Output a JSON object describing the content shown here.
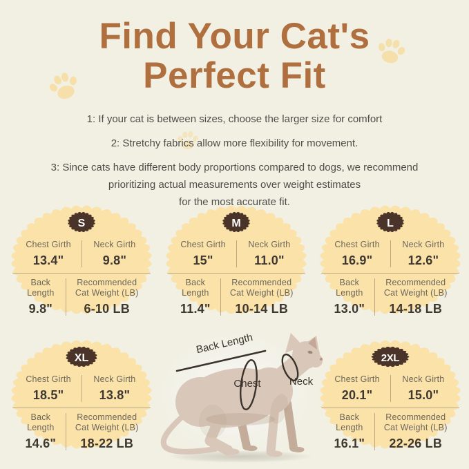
{
  "page": {
    "title_line1": "Find Your Cat's",
    "title_line2": "Perfect Fit",
    "colors": {
      "background": "#f1f0e3",
      "title": "#b06f3e",
      "badge_fill": "#fbe2a9",
      "badge_pill": "#4a342a",
      "label_text": "#6b665a",
      "value_text": "#3e3831",
      "tip_text": "#4e4d48",
      "paw_print": "#f7dd9e",
      "annotation": "#3a332b"
    }
  },
  "tips": [
    {
      "lines": [
        "1: If your cat is between sizes, choose the larger size for comfort"
      ]
    },
    {
      "lines": [
        "2: Stretchy fabrics allow more flexibility for movement."
      ]
    },
    {
      "lines": [
        "3: Since cats have different body proportions compared to dogs, we recommend",
        "prioritizing actual measurements over weight estimates",
        "for the most accurate fit."
      ]
    }
  ],
  "badge_labels": {
    "chest": "Chest Girth",
    "neck": "Neck Girth",
    "back_line1": "Back",
    "back_line2": "Length",
    "weight_line1": "Recommended",
    "weight_line2": "Cat Weight (LB)"
  },
  "sizes": [
    {
      "label": "S",
      "chest": "13.4\"",
      "neck": "9.8\"",
      "back": "9.8\"",
      "weight": "6-10 LB"
    },
    {
      "label": "M",
      "chest": "15\"",
      "neck": "11.0\"",
      "back": "11.4\"",
      "weight": "10-14 LB"
    },
    {
      "label": "L",
      "chest": "16.9\"",
      "neck": "12.6\"",
      "back": "13.0\"",
      "weight": "14-18 LB"
    },
    {
      "label": "XL",
      "chest": "18.5\"",
      "neck": "13.8\"",
      "back": "14.6\"",
      "weight": "18-22 LB"
    },
    {
      "label": "2XL",
      "chest": "20.1\"",
      "neck": "15.0\"",
      "back": "16.1\"",
      "weight": "22-26 LB"
    }
  ],
  "diagram": {
    "back_length_label": "Back Length",
    "chest_label": "Chest",
    "neck_label": "Neck"
  },
  "decor": {
    "paw_icon": "paw-icon",
    "paw_count": 3
  }
}
